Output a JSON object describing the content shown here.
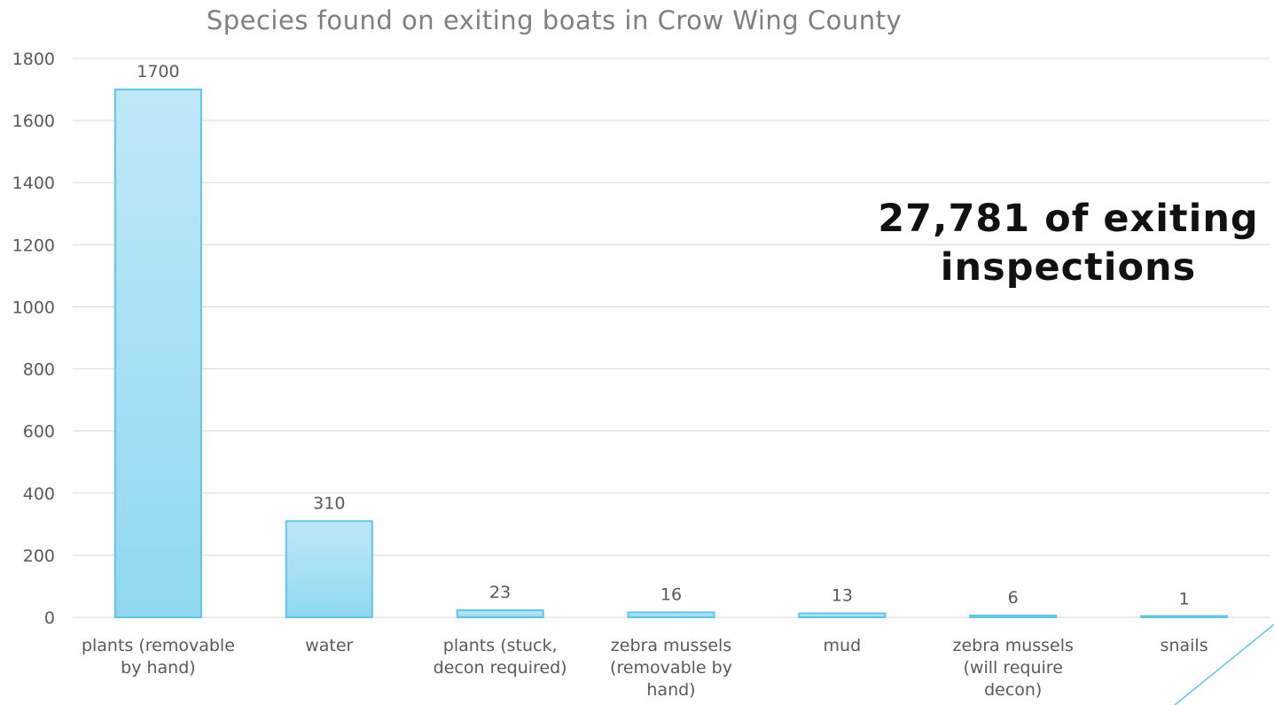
{
  "chart_data": {
    "type": "bar",
    "title": "Species found on exiting boats in Crow Wing County",
    "categories": [
      [
        "plants (removable",
        "by hand)"
      ],
      [
        "water"
      ],
      [
        "plants (stuck,",
        "decon required)"
      ],
      [
        "zebra mussels",
        "(removable by",
        "hand)"
      ],
      [
        "mud"
      ],
      [
        "zebra mussels",
        "(will require",
        "decon)"
      ],
      [
        "snails"
      ]
    ],
    "values": [
      1700,
      310,
      23,
      16,
      13,
      6,
      1
    ],
    "data_labels": [
      "1700",
      "310",
      "23",
      "16",
      "13",
      "6",
      "1"
    ],
    "ylim": [
      0,
      1800
    ],
    "yticks": [
      0,
      200,
      400,
      600,
      800,
      1000,
      1200,
      1400,
      1600,
      1800
    ],
    "grid": true,
    "xlabel": "",
    "ylabel": "",
    "bar_color_top": "#bfe8f8",
    "bar_color_bottom": "#8fd8f2",
    "bar_border": "#5fc6ea",
    "grid_color": "#d9d9d9"
  },
  "callout": "27,781 of exiting inspections",
  "decor_line_color": "#5fc6ea"
}
